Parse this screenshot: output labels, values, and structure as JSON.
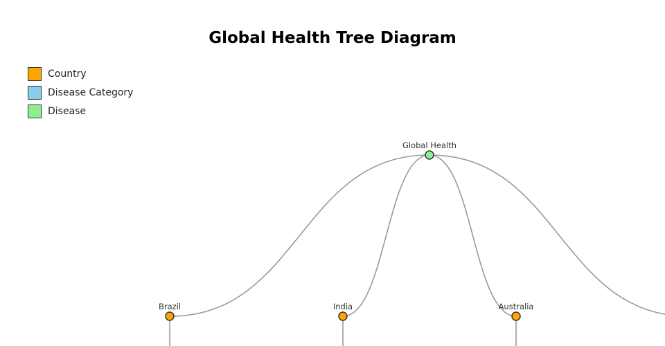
{
  "title": "Global Health Tree Diagram",
  "legend": [
    {
      "label": "Country",
      "color": "#FFA500"
    },
    {
      "label": "Disease Category",
      "color": "#87CEEB"
    },
    {
      "label": "Disease",
      "color": "#90EE90"
    }
  ],
  "tree": {
    "root": {
      "label": "Global Health",
      "type": "Disease"
    },
    "children": [
      {
        "label": "Brazil",
        "type": "Country"
      },
      {
        "label": "India",
        "type": "Country"
      },
      {
        "label": "Australia",
        "type": "Country"
      },
      {
        "label": "",
        "type": "Country"
      }
    ]
  }
}
